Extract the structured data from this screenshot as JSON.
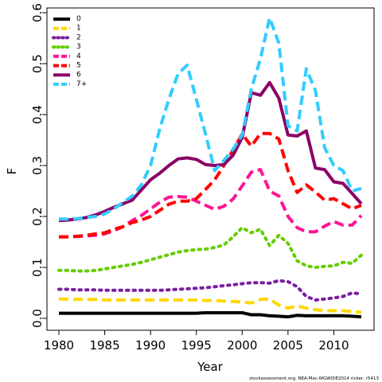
{
  "chart_data": {
    "type": "line",
    "xlabel": "Year",
    "ylabel": "F",
    "credit": "stockassessment.org, NEA-Mac-WGWIDE2014 ricker, r5413",
    "xlim": [
      1980,
      2013
    ],
    "ylim": [
      0,
      0.6
    ],
    "x_ticks": [
      1980,
      1985,
      1990,
      1995,
      2000,
      2005,
      2010
    ],
    "y_ticks": [
      0.0,
      0.1,
      0.2,
      0.3,
      0.4,
      0.5,
      0.6
    ],
    "y_tick_labels": [
      "0.0",
      "0.1",
      "0.2",
      "0.3",
      "0.4",
      "0.5",
      "0.6"
    ],
    "x": [
      1980,
      1981,
      1982,
      1983,
      1984,
      1985,
      1986,
      1987,
      1988,
      1989,
      1990,
      1991,
      1992,
      1993,
      1994,
      1995,
      1996,
      1997,
      1998,
      1999,
      2000,
      2001,
      2002,
      2003,
      2004,
      2005,
      2006,
      2007,
      2008,
      2009,
      2010,
      2011,
      2012,
      2013
    ],
    "series": [
      {
        "name": "0",
        "color": "#000000",
        "dash": "solid",
        "values": [
          0.01,
          0.01,
          0.01,
          0.01,
          0.01,
          0.01,
          0.01,
          0.01,
          0.01,
          0.01,
          0.01,
          0.01,
          0.01,
          0.01,
          0.01,
          0.01,
          0.011,
          0.011,
          0.011,
          0.011,
          0.011,
          0.007,
          0.007,
          0.005,
          0.004,
          0.003,
          0.006,
          0.005,
          0.005,
          0.005,
          0.005,
          0.005,
          0.004,
          0.003
        ]
      },
      {
        "name": "1",
        "color": "#FFD700",
        "dash": "dashed",
        "values": [
          0.038,
          0.038,
          0.037,
          0.037,
          0.037,
          0.036,
          0.036,
          0.036,
          0.036,
          0.036,
          0.036,
          0.036,
          0.036,
          0.036,
          0.036,
          0.036,
          0.035,
          0.035,
          0.034,
          0.033,
          0.032,
          0.03,
          0.037,
          0.038,
          0.026,
          0.02,
          0.024,
          0.02,
          0.017,
          0.015,
          0.015,
          0.015,
          0.013,
          0.012
        ]
      },
      {
        "name": "2",
        "color": "#7B1FA2",
        "dash": "dotted",
        "values": [
          0.057,
          0.057,
          0.056,
          0.056,
          0.056,
          0.055,
          0.055,
          0.055,
          0.055,
          0.055,
          0.055,
          0.055,
          0.056,
          0.057,
          0.058,
          0.059,
          0.06,
          0.062,
          0.064,
          0.066,
          0.068,
          0.07,
          0.07,
          0.069,
          0.074,
          0.072,
          0.062,
          0.043,
          0.036,
          0.038,
          0.04,
          0.043,
          0.05,
          0.048
        ]
      },
      {
        "name": "3",
        "color": "#66CC00",
        "dash": "dotted",
        "values": [
          0.094,
          0.094,
          0.093,
          0.093,
          0.094,
          0.097,
          0.1,
          0.103,
          0.106,
          0.11,
          0.115,
          0.12,
          0.125,
          0.13,
          0.133,
          0.135,
          0.136,
          0.139,
          0.144,
          0.16,
          0.178,
          0.168,
          0.175,
          0.143,
          0.163,
          0.147,
          0.113,
          0.103,
          0.1,
          0.102,
          0.103,
          0.11,
          0.108,
          0.124
        ]
      },
      {
        "name": "4",
        "color": "#FF1493",
        "dash": "dashed",
        "values": [
          0.16,
          0.16,
          0.161,
          0.162,
          0.163,
          0.166,
          0.172,
          0.18,
          0.192,
          0.202,
          0.215,
          0.228,
          0.238,
          0.239,
          0.238,
          0.23,
          0.222,
          0.214,
          0.22,
          0.234,
          0.26,
          0.287,
          0.292,
          0.25,
          0.24,
          0.2,
          0.178,
          0.17,
          0.17,
          0.181,
          0.19,
          0.183,
          0.183,
          0.202
        ]
      },
      {
        "name": "5",
        "color": "#FF0000",
        "dash": "dashed",
        "values": [
          0.16,
          0.16,
          0.161,
          0.163,
          0.166,
          0.168,
          0.175,
          0.18,
          0.188,
          0.193,
          0.2,
          0.212,
          0.224,
          0.23,
          0.23,
          0.235,
          0.253,
          0.272,
          0.3,
          0.33,
          0.362,
          0.338,
          0.363,
          0.363,
          0.352,
          0.29,
          0.247,
          0.262,
          0.248,
          0.232,
          0.235,
          0.225,
          0.215,
          0.222
        ]
      },
      {
        "name": "6",
        "color": "#8B0066",
        "dash": "solid",
        "values": [
          0.192,
          0.193,
          0.195,
          0.198,
          0.203,
          0.21,
          0.218,
          0.225,
          0.232,
          0.252,
          0.272,
          0.285,
          0.3,
          0.313,
          0.315,
          0.312,
          0.302,
          0.3,
          0.302,
          0.32,
          0.355,
          0.443,
          0.438,
          0.463,
          0.432,
          0.36,
          0.358,
          0.368,
          0.295,
          0.292,
          0.268,
          0.265,
          0.245,
          0.225
        ]
      },
      {
        "name": "7+",
        "color": "#33CCFF",
        "dash": "dashed",
        "values": [
          0.195,
          0.195,
          0.196,
          0.198,
          0.2,
          0.205,
          0.215,
          0.228,
          0.24,
          0.262,
          0.3,
          0.372,
          0.43,
          0.48,
          0.497,
          0.43,
          0.362,
          0.29,
          0.31,
          0.332,
          0.36,
          0.45,
          0.51,
          0.59,
          0.54,
          0.378,
          0.368,
          0.49,
          0.447,
          0.335,
          0.3,
          0.29,
          0.25,
          0.255
        ]
      }
    ],
    "legend": {
      "position": "top-left"
    },
    "grid": false
  }
}
